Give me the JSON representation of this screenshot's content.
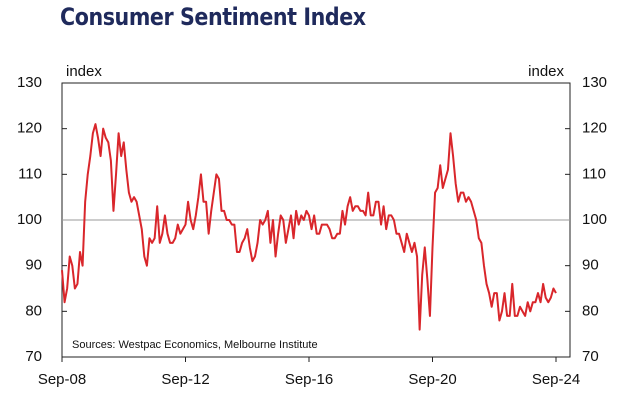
{
  "chart_data": {
    "type": "line",
    "title": "Consumer Sentiment Index",
    "ylabel": "index",
    "y2label": "index",
    "source": "Sources: Westpac Economics, Melbourne Institute",
    "categories": [
      "Sep-08",
      null,
      null,
      null,
      null,
      null,
      null,
      null,
      null,
      null,
      null,
      null,
      null,
      null,
      null,
      null,
      null,
      null,
      null,
      null,
      null,
      null,
      null,
      null,
      null,
      null,
      null,
      null,
      null,
      null,
      null,
      null,
      null,
      null,
      null,
      null,
      null,
      null,
      null,
      null,
      null,
      null,
      null,
      null,
      null,
      null,
      null,
      null,
      "Sep-12",
      null,
      null,
      null,
      null,
      null,
      null,
      null,
      null,
      null,
      null,
      null,
      null,
      null,
      null,
      null,
      null,
      null,
      null,
      null,
      null,
      null,
      null,
      null,
      null,
      null,
      null,
      null,
      null,
      null,
      null,
      null,
      null,
      null,
      null,
      null,
      null,
      null,
      null,
      null,
      null,
      null,
      null,
      null,
      null,
      null,
      null,
      null,
      "Sep-16",
      null,
      null,
      null,
      null,
      null,
      null,
      null,
      null,
      null,
      null,
      null,
      null,
      null,
      null,
      null,
      null,
      null,
      null,
      null,
      null,
      null,
      null,
      null,
      null,
      null,
      null,
      null,
      null,
      null,
      null,
      null,
      null,
      null,
      null,
      null,
      null,
      null,
      null,
      null,
      null,
      null,
      null,
      null,
      null,
      null,
      null,
      null,
      "Sep-20",
      null,
      null,
      null,
      null,
      null,
      null,
      null,
      null,
      null,
      null,
      null,
      null,
      null,
      null,
      null,
      null,
      null,
      null,
      null,
      null,
      null,
      null,
      null,
      null,
      null,
      null,
      null,
      null,
      null,
      null,
      null,
      null,
      null,
      null,
      null,
      null,
      null,
      null,
      null,
      null,
      null,
      null,
      null,
      null,
      null,
      null,
      null,
      "Sep-24"
    ],
    "series": [
      {
        "name": "Consumer Sentiment Index",
        "color": "#d9262b",
        "values": [
          89,
          82,
          85,
          92,
          90,
          85,
          86,
          93,
          90,
          104,
          110,
          114,
          119,
          121,
          118,
          114,
          120,
          118,
          117,
          113,
          102,
          110,
          119,
          114,
          117,
          111,
          106,
          104,
          105,
          104,
          101,
          98,
          92,
          90,
          96,
          95,
          96,
          103,
          95,
          97,
          101,
          97,
          95,
          95,
          96,
          99,
          97,
          98,
          99,
          104,
          100,
          98,
          101,
          105,
          110,
          104,
          104,
          97,
          102,
          106,
          110,
          109,
          102,
          102,
          100,
          100,
          99,
          99,
          93,
          93,
          95,
          96,
          98,
          94,
          91,
          92,
          95,
          100,
          99,
          100,
          102,
          95,
          100,
          92,
          97,
          101,
          100,
          95,
          98,
          101,
          96,
          102,
          99,
          101,
          100,
          102,
          101,
          98,
          101,
          97,
          97,
          99,
          99,
          99,
          98,
          96,
          96,
          97,
          97,
          102,
          99,
          103,
          105,
          102,
          103,
          103,
          102,
          102,
          101,
          106,
          101,
          101,
          104,
          104,
          99,
          103,
          98,
          101,
          101,
          100,
          97,
          97,
          95,
          93,
          97,
          95,
          93,
          95,
          92,
          76,
          88,
          94,
          87,
          79,
          94,
          106,
          107,
          112,
          107,
          109,
          111,
          119,
          114,
          108,
          104,
          106,
          106,
          104,
          105,
          104,
          102,
          100,
          96,
          95,
          90,
          86,
          84,
          81,
          84,
          84,
          78,
          80,
          84,
          79,
          79,
          86,
          79,
          79,
          81,
          80,
          79,
          82,
          80,
          82,
          82,
          84,
          82,
          86,
          83,
          82,
          83,
          85,
          84
        ]
      }
    ],
    "ylim": [
      70,
      130
    ],
    "yticks": [
      70,
      80,
      90,
      100,
      110,
      120,
      130
    ],
    "y2lim": [
      70,
      130
    ],
    "y2ticks": [
      70,
      80,
      90,
      100,
      110,
      120,
      130
    ],
    "hline": 100
  }
}
